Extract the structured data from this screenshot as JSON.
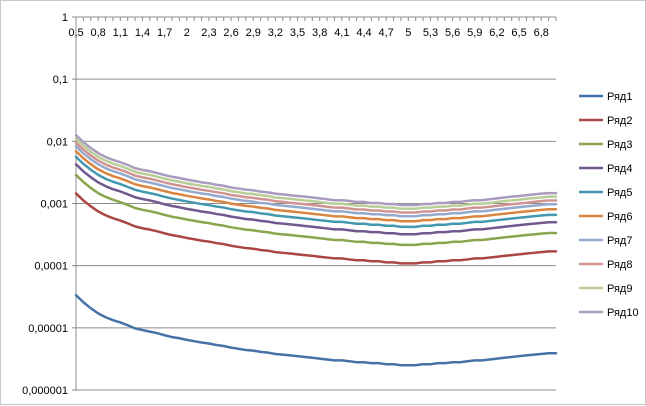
{
  "chart_data": {
    "type": "line",
    "title": "",
    "xlabel": "",
    "ylabel": "",
    "y_scale": "log",
    "ylim": [
      1e-06,
      1
    ],
    "grid": "horizontal major gridlines",
    "legend_position": "right",
    "y_tick_labels": [
      "1",
      "0,1",
      "0,01",
      "0,001",
      "0,0001",
      "0,00001",
      "0,000001"
    ],
    "x_tick_labels": [
      "0,5",
      "0,8",
      "1,1",
      "1,4",
      "1,7",
      "2",
      "2,3",
      "2,6",
      "2,9",
      "3,2",
      "3,5",
      "3,8",
      "4,1",
      "4,4",
      "4,7",
      "5",
      "5,3",
      "5,6",
      "5,9",
      "6,2",
      "6,5",
      "6,8"
    ],
    "x": [
      0.5,
      0.6,
      0.7,
      0.8,
      0.9,
      1.0,
      1.1,
      1.2,
      1.3,
      1.4,
      1.5,
      1.6,
      1.7,
      1.8,
      1.9,
      2.0,
      2.1,
      2.2,
      2.3,
      2.4,
      2.5,
      2.6,
      2.7,
      2.8,
      2.9,
      3.0,
      3.1,
      3.2,
      3.3,
      3.4,
      3.5,
      3.6,
      3.7,
      3.8,
      3.9,
      4.0,
      4.1,
      4.2,
      4.3,
      4.4,
      4.5,
      4.6,
      4.7,
      4.8,
      4.9,
      5.0,
      5.1,
      5.2,
      5.3,
      5.4,
      5.5,
      5.6,
      5.7,
      5.8,
      5.9,
      6.0,
      6.1,
      6.2,
      6.3,
      6.4,
      6.5,
      6.6,
      6.7,
      6.8,
      6.9,
      7.0
    ],
    "series": [
      {
        "name": "Ряд1",
        "color": "#4572A7",
        "values": [
          3.35e-05,
          2.58e-05,
          2.07e-05,
          1.71e-05,
          1.48e-05,
          1.33e-05,
          1.22e-05,
          1.1e-05,
          9.8e-06,
          9.2e-06,
          8.7e-06,
          8.2e-06,
          7.6e-06,
          7.1e-06,
          6.8e-06,
          6.4e-06,
          6.1e-06,
          5.8e-06,
          5.6e-06,
          5.3e-06,
          5.1e-06,
          4.8e-06,
          4.6e-06,
          4.4e-06,
          4.3e-06,
          4.1e-06,
          4e-06,
          3.8e-06,
          3.7e-06,
          3.6e-06,
          3.5e-06,
          3.4e-06,
          3.3e-06,
          3.2e-06,
          3.1e-06,
          3e-06,
          3e-06,
          2.9e-06,
          2.8e-06,
          2.8e-06,
          2.7e-06,
          2.7e-06,
          2.6e-06,
          2.6e-06,
          2.5e-06,
          2.5e-06,
          2.5e-06,
          2.6e-06,
          2.6e-06,
          2.7e-06,
          2.7e-06,
          2.8e-06,
          2.8e-06,
          2.9e-06,
          3e-06,
          3e-06,
          3.1e-06,
          3.2e-06,
          3.3e-06,
          3.4e-06,
          3.5e-06,
          3.6e-06,
          3.7e-06,
          3.8e-06,
          3.9e-06,
          3.9e-06
        ]
      },
      {
        "name": "Ряд2",
        "color": "#AA4643",
        "values": [
          0.00145,
          0.00112,
          0.000901,
          0.000746,
          0.000647,
          0.00058,
          0.000532,
          0.000479,
          0.000428,
          0.0004,
          0.00038,
          0.000357,
          0.000331,
          0.00031,
          0.000296,
          0.000279,
          0.000266,
          0.000253,
          0.000244,
          0.000231,
          0.000222,
          0.000209,
          0.0002,
          0.000192,
          0.000187,
          0.000179,
          0.000174,
          0.000165,
          0.000161,
          0.000157,
          0.000152,
          0.000148,
          0.000144,
          0.000139,
          0.000135,
          0.000131,
          0.000131,
          0.000126,
          0.000122,
          0.000122,
          0.000118,
          0.000118,
          0.000113,
          0.000113,
          0.000109,
          0.000109,
          0.000109,
          0.000113,
          0.000113,
          0.000118,
          0.000118,
          0.000122,
          0.000122,
          0.000126,
          0.000131,
          0.000131,
          0.000135,
          0.000139,
          0.000144,
          0.000148,
          0.000152,
          0.000157,
          0.000161,
          0.000165,
          0.00017,
          0.00017
        ]
      },
      {
        "name": "Ряд3",
        "color": "#89A54E",
        "values": [
          0.00288,
          0.00222,
          0.00178,
          0.00147,
          0.00128,
          0.00115,
          0.00105,
          0.000947,
          0.000847,
          0.000792,
          0.000752,
          0.000707,
          0.000655,
          0.000613,
          0.000586,
          0.000552,
          0.000527,
          0.000501,
          0.000483,
          0.000457,
          0.00044,
          0.000414,
          0.000397,
          0.00038,
          0.000371,
          0.000354,
          0.000345,
          0.000328,
          0.000319,
          0.000311,
          0.000302,
          0.000293,
          0.000285,
          0.000276,
          0.000267,
          0.000259,
          0.000259,
          0.00025,
          0.000242,
          0.000242,
          0.000233,
          0.000233,
          0.000224,
          0.000224,
          0.000216,
          0.000216,
          0.000216,
          0.000224,
          0.000224,
          0.000233,
          0.000233,
          0.000242,
          0.000242,
          0.00025,
          0.000259,
          0.000259,
          0.000267,
          0.000276,
          0.000285,
          0.000293,
          0.000302,
          0.000311,
          0.000319,
          0.000328,
          0.000336,
          0.000336
        ]
      },
      {
        "name": "Ряд4",
        "color": "#71588F",
        "values": [
          0.00427,
          0.00329,
          0.00265,
          0.00219,
          0.0019,
          0.0017,
          0.00156,
          0.00141,
          0.00126,
          0.00118,
          0.00112,
          0.00105,
          0.000972,
          0.000911,
          0.000869,
          0.000819,
          0.000782,
          0.000744,
          0.000717,
          0.000679,
          0.000653,
          0.000615,
          0.000589,
          0.000564,
          0.00055,
          0.000525,
          0.000512,
          0.000486,
          0.000474,
          0.000461,
          0.000448,
          0.000435,
          0.000422,
          0.000409,
          0.000397,
          0.000384,
          0.000384,
          0.000371,
          0.000358,
          0.000358,
          0.000346,
          0.000346,
          0.000333,
          0.000333,
          0.00032,
          0.00032,
          0.00032,
          0.000333,
          0.000333,
          0.000346,
          0.000346,
          0.000358,
          0.000358,
          0.000371,
          0.000384,
          0.000384,
          0.000397,
          0.000409,
          0.000422,
          0.000435,
          0.000448,
          0.000461,
          0.000474,
          0.000486,
          0.000499,
          0.000499
        ]
      },
      {
        "name": "Ряд5",
        "color": "#4198AF",
        "values": [
          0.00562,
          0.00434,
          0.00349,
          0.00289,
          0.0025,
          0.00224,
          0.00205,
          0.00185,
          0.00166,
          0.00155,
          0.00147,
          0.00138,
          0.00128,
          0.0012,
          0.00114,
          0.00108,
          0.00103,
          0.00098,
          0.000943,
          0.000893,
          0.00086,
          0.00081,
          0.000776,
          0.000743,
          0.000726,
          0.000693,
          0.000674,
          0.000641,
          0.000624,
          0.000607,
          0.00059,
          0.000573,
          0.000556,
          0.000539,
          0.000523,
          0.000506,
          0.000506,
          0.000489,
          0.000472,
          0.000472,
          0.000455,
          0.000455,
          0.000438,
          0.000438,
          0.000421,
          0.000421,
          0.000421,
          0.000438,
          0.000438,
          0.000455,
          0.000455,
          0.000472,
          0.000472,
          0.000489,
          0.000506,
          0.000506,
          0.000523,
          0.000539,
          0.000556,
          0.000573,
          0.00059,
          0.000607,
          0.000624,
          0.000641,
          0.000657,
          0.000657
        ]
      },
      {
        "name": "Ряд6",
        "color": "#DB843D",
        "values": [
          0.00692,
          0.00534,
          0.00429,
          0.00355,
          0.00308,
          0.00276,
          0.00253,
          0.00228,
          0.00204,
          0.00191,
          0.00181,
          0.0017,
          0.00158,
          0.00148,
          0.00141,
          0.00133,
          0.00127,
          0.00121,
          0.00116,
          0.0011,
          0.00106,
          0.000997,
          0.000955,
          0.000915,
          0.000893,
          0.000853,
          0.00083,
          0.000789,
          0.000768,
          0.000747,
          0.000726,
          0.000705,
          0.000685,
          0.000664,
          0.000643,
          0.000622,
          0.000622,
          0.000602,
          0.000581,
          0.000581,
          0.00056,
          0.00056,
          0.00054,
          0.00054,
          0.000519,
          0.000519,
          0.000519,
          0.00054,
          0.00054,
          0.00056,
          0.00056,
          0.000581,
          0.000581,
          0.000602,
          0.000622,
          0.000622,
          0.000643,
          0.000664,
          0.000685,
          0.000705,
          0.000726,
          0.000747,
          0.000768,
          0.000789,
          0.000809,
          0.000809
        ]
      },
      {
        "name": "Ряд7",
        "color": "#93A9CF",
        "values": [
          0.00832,
          0.00642,
          0.00516,
          0.00427,
          0.0037,
          0.00332,
          0.00304,
          0.00274,
          0.00245,
          0.00229,
          0.00217,
          0.00204,
          0.0019,
          0.00177,
          0.00169,
          0.0016,
          0.00152,
          0.00145,
          0.0014,
          0.00132,
          0.00127,
          0.0012,
          0.00115,
          0.0011,
          0.00107,
          0.00102,
          0.000998,
          0.000948,
          0.000923,
          0.000898,
          0.000873,
          0.000848,
          0.000823,
          0.000798,
          0.000773,
          0.000748,
          0.000748,
          0.000723,
          0.000698,
          0.000698,
          0.000673,
          0.000673,
          0.000649,
          0.000649,
          0.000624,
          0.000624,
          0.000624,
          0.000649,
          0.000649,
          0.000673,
          0.000673,
          0.000698,
          0.000698,
          0.000723,
          0.000748,
          0.000748,
          0.000773,
          0.000798,
          0.000823,
          0.000848,
          0.000873,
          0.000898,
          0.000923,
          0.000948,
          0.000972,
          0.000972
        ]
      },
      {
        "name": "Ряд8",
        "color": "#D19392",
        "values": [
          0.00955,
          0.00737,
          0.00592,
          0.0049,
          0.00425,
          0.00381,
          0.00349,
          0.00315,
          0.00281,
          0.00263,
          0.0025,
          0.00234,
          0.00218,
          0.00204,
          0.00194,
          0.00183,
          0.00175,
          0.00166,
          0.0016,
          0.00152,
          0.00146,
          0.00137,
          0.00132,
          0.00126,
          0.00123,
          0.00118,
          0.00115,
          0.00109,
          0.00106,
          0.00103,
          0.001,
          0.000974,
          0.000946,
          0.000917,
          0.000888,
          0.00086,
          0.00086,
          0.000831,
          0.000802,
          0.000802,
          0.000773,
          0.000773,
          0.000745,
          0.000745,
          0.000716,
          0.000716,
          0.000716,
          0.000745,
          0.000745,
          0.000773,
          0.000773,
          0.000802,
          0.000802,
          0.000831,
          0.00086,
          0.00086,
          0.000888,
          0.000917,
          0.000946,
          0.000974,
          0.001,
          0.00103,
          0.00106,
          0.00109,
          0.00112,
          0.00112
        ]
      },
      {
        "name": "Ряд9",
        "color": "#B9CD96",
        "values": [
          0.011,
          0.00849,
          0.00682,
          0.00565,
          0.0049,
          0.00439,
          0.00402,
          0.00363,
          0.00324,
          0.00303,
          0.00288,
          0.0027,
          0.00251,
          0.00235,
          0.00224,
          0.00211,
          0.00201,
          0.00192,
          0.00185,
          0.00175,
          0.00168,
          0.00158,
          0.00152,
          0.00145,
          0.00142,
          0.00136,
          0.00132,
          0.00125,
          0.00122,
          0.00119,
          0.00115,
          0.00112,
          0.00109,
          0.00106,
          0.00102,
          0.00099,
          0.00099,
          0.000957,
          0.000924,
          0.000924,
          0.000891,
          0.000891,
          0.000858,
          0.000858,
          0.000825,
          0.000825,
          0.000825,
          0.000858,
          0.000858,
          0.000891,
          0.000891,
          0.000924,
          0.000924,
          0.000957,
          0.00099,
          0.00099,
          0.00102,
          0.00106,
          0.00109,
          0.00112,
          0.00115,
          0.00119,
          0.00122,
          0.00125,
          0.00129,
          0.00129
        ]
      },
      {
        "name": "Ряд10",
        "color": "#A99BBD",
        "values": [
          0.0126,
          0.00972,
          0.00781,
          0.00647,
          0.00561,
          0.00503,
          0.00461,
          0.00416,
          0.00371,
          0.00347,
          0.0033,
          0.00309,
          0.00287,
          0.00269,
          0.00257,
          0.00242,
          0.00231,
          0.00219,
          0.00212,
          0.002,
          0.00193,
          0.00181,
          0.00174,
          0.00167,
          0.00163,
          0.00155,
          0.00151,
          0.00144,
          0.0014,
          0.00136,
          0.00132,
          0.00129,
          0.00125,
          0.00121,
          0.00117,
          0.00113,
          0.00113,
          0.0011,
          0.00106,
          0.00106,
          0.00102,
          0.00102,
          0.000982,
          0.000982,
          0.000944,
          0.000944,
          0.000944,
          0.000982,
          0.000982,
          0.00102,
          0.00102,
          0.00106,
          0.00106,
          0.0011,
          0.00113,
          0.00113,
          0.00117,
          0.00121,
          0.00125,
          0.00129,
          0.00132,
          0.00136,
          0.0014,
          0.00144,
          0.00147,
          0.00147
        ]
      }
    ]
  }
}
